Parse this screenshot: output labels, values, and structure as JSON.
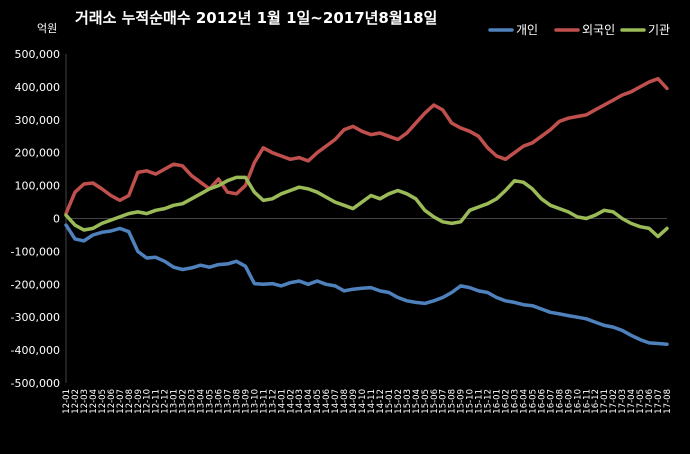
{
  "chart_data": {
    "type": "line",
    "title": "거래소 누적순매수 2012년 1월 1일~2017년8월18일",
    "ylabel": "",
    "unit_label": "억원",
    "ylim": [
      -500000,
      500000
    ],
    "y_ticks": [
      {
        "value": 500000,
        "label": "500,000"
      },
      {
        "value": 400000,
        "label": "400,000"
      },
      {
        "value": 300000,
        "label": "300,000"
      },
      {
        "value": 200000,
        "label": "200,000"
      },
      {
        "value": 100000,
        "label": "100,000"
      },
      {
        "value": 0,
        "label": "0"
      },
      {
        "value": -100000,
        "label": "-100,000"
      },
      {
        "value": -200000,
        "label": "-200,000"
      },
      {
        "value": -300000,
        "label": "-300,000"
      },
      {
        "value": -400000,
        "label": "-400,000"
      },
      {
        "value": -500000,
        "label": "-500,000"
      }
    ],
    "grid": false,
    "legend_position": "top-right",
    "categories": [
      "12-01",
      "12-02",
      "12-03",
      "12-04",
      "12-05",
      "12-06",
      "12-07",
      "12-08",
      "12-09",
      "12-10",
      "12-11",
      "12-12",
      "13-01",
      "13-02",
      "13-03",
      "13-04",
      "13-05",
      "13-06",
      "13-07",
      "13-08",
      "13-09",
      "13-10",
      "13-11",
      "13-12",
      "14-01",
      "14-02",
      "14-03",
      "14-04",
      "14-05",
      "14-06",
      "14-07",
      "14-08",
      "14-09",
      "14-10",
      "14-11",
      "14-12",
      "15-01",
      "15-02",
      "15-03",
      "15-04",
      "15-05",
      "15-06",
      "15-07",
      "15-08",
      "15-09",
      "15-10",
      "15-11",
      "15-12",
      "16-01",
      "16-02",
      "16-03",
      "16-04",
      "16-05",
      "16-06",
      "16-07",
      "16-08",
      "16-09",
      "16-10",
      "16-11",
      "16-12",
      "17-01",
      "17-02",
      "17-03",
      "17-04",
      "17-05",
      "17-06",
      "17-07",
      "17-08"
    ],
    "series": [
      {
        "name": "개인",
        "color": "#4f81bd",
        "values": [
          -20000,
          -62000,
          -68000,
          -50000,
          -42000,
          -38000,
          -30000,
          -40000,
          -100000,
          -120000,
          -118000,
          -130000,
          -148000,
          -155000,
          -150000,
          -142000,
          -148000,
          -140000,
          -138000,
          -130000,
          -145000,
          -198000,
          -200000,
          -198000,
          -205000,
          -195000,
          -190000,
          -200000,
          -190000,
          -200000,
          -205000,
          -220000,
          -215000,
          -212000,
          -210000,
          -220000,
          -225000,
          -240000,
          -250000,
          -255000,
          -258000,
          -250000,
          -240000,
          -225000,
          -205000,
          -210000,
          -220000,
          -225000,
          -240000,
          -250000,
          -255000,
          -262000,
          -265000,
          -275000,
          -285000,
          -290000,
          -295000,
          -300000,
          -305000,
          -315000,
          -325000,
          -330000,
          -340000,
          -355000,
          -368000,
          -378000,
          -380000,
          -382000
        ]
      },
      {
        "name": "외국인",
        "color": "#c0504d",
        "values": [
          15000,
          80000,
          105000,
          108000,
          90000,
          70000,
          55000,
          70000,
          140000,
          145000,
          135000,
          150000,
          165000,
          160000,
          130000,
          110000,
          90000,
          120000,
          80000,
          75000,
          100000,
          170000,
          215000,
          200000,
          190000,
          180000,
          185000,
          175000,
          200000,
          220000,
          240000,
          270000,
          280000,
          265000,
          255000,
          260000,
          250000,
          240000,
          260000,
          290000,
          320000,
          345000,
          330000,
          290000,
          275000,
          265000,
          250000,
          215000,
          190000,
          180000,
          200000,
          220000,
          230000,
          250000,
          270000,
          295000,
          305000,
          310000,
          315000,
          330000,
          345000,
          360000,
          375000,
          385000,
          400000,
          415000,
          425000,
          395000
        ]
      },
      {
        "name": "기관",
        "color": "#9bbb59",
        "values": [
          10000,
          -20000,
          -35000,
          -30000,
          -15000,
          -5000,
          5000,
          15000,
          20000,
          15000,
          25000,
          30000,
          40000,
          45000,
          60000,
          75000,
          90000,
          100000,
          115000,
          125000,
          125000,
          80000,
          55000,
          60000,
          75000,
          85000,
          95000,
          90000,
          80000,
          65000,
          50000,
          40000,
          30000,
          50000,
          70000,
          60000,
          75000,
          85000,
          75000,
          60000,
          25000,
          5000,
          -10000,
          -15000,
          -10000,
          25000,
          35000,
          45000,
          60000,
          85000,
          115000,
          110000,
          90000,
          60000,
          40000,
          30000,
          20000,
          5000,
          0,
          10000,
          25000,
          20000,
          0,
          -15000,
          -25000,
          -30000,
          -55000,
          -30000
        ]
      }
    ]
  }
}
